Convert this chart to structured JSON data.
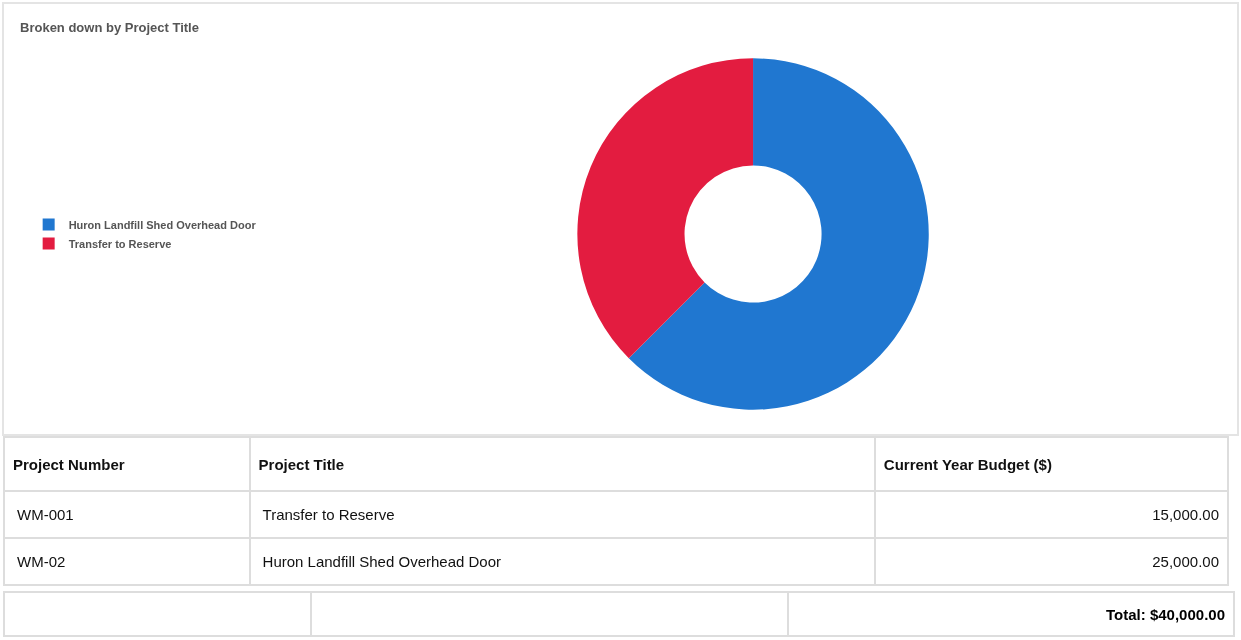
{
  "chart_data": [
    {
      "type": "donut",
      "title": "Broken down by Project Title",
      "categories": [
        "Huron Landfill Shed Overhead Door",
        "Transfer to Reserve"
      ],
      "values": [
        62.5,
        37.5
      ],
      "colors": [
        "#2077d0",
        "#e31c40"
      ],
      "legend": "left"
    },
    {
      "type": "other",
      "annotations": [
        "Project Number",
        "Project Title",
        "Current Year Budget ($)",
        "WM-001",
        "Transfer to Reserve",
        "15,000.00",
        "WM-02",
        "Huron Landfill Shed Overhead Door",
        "25,000.00",
        "Total: $40,000.00"
      ]
    }
  ]
}
